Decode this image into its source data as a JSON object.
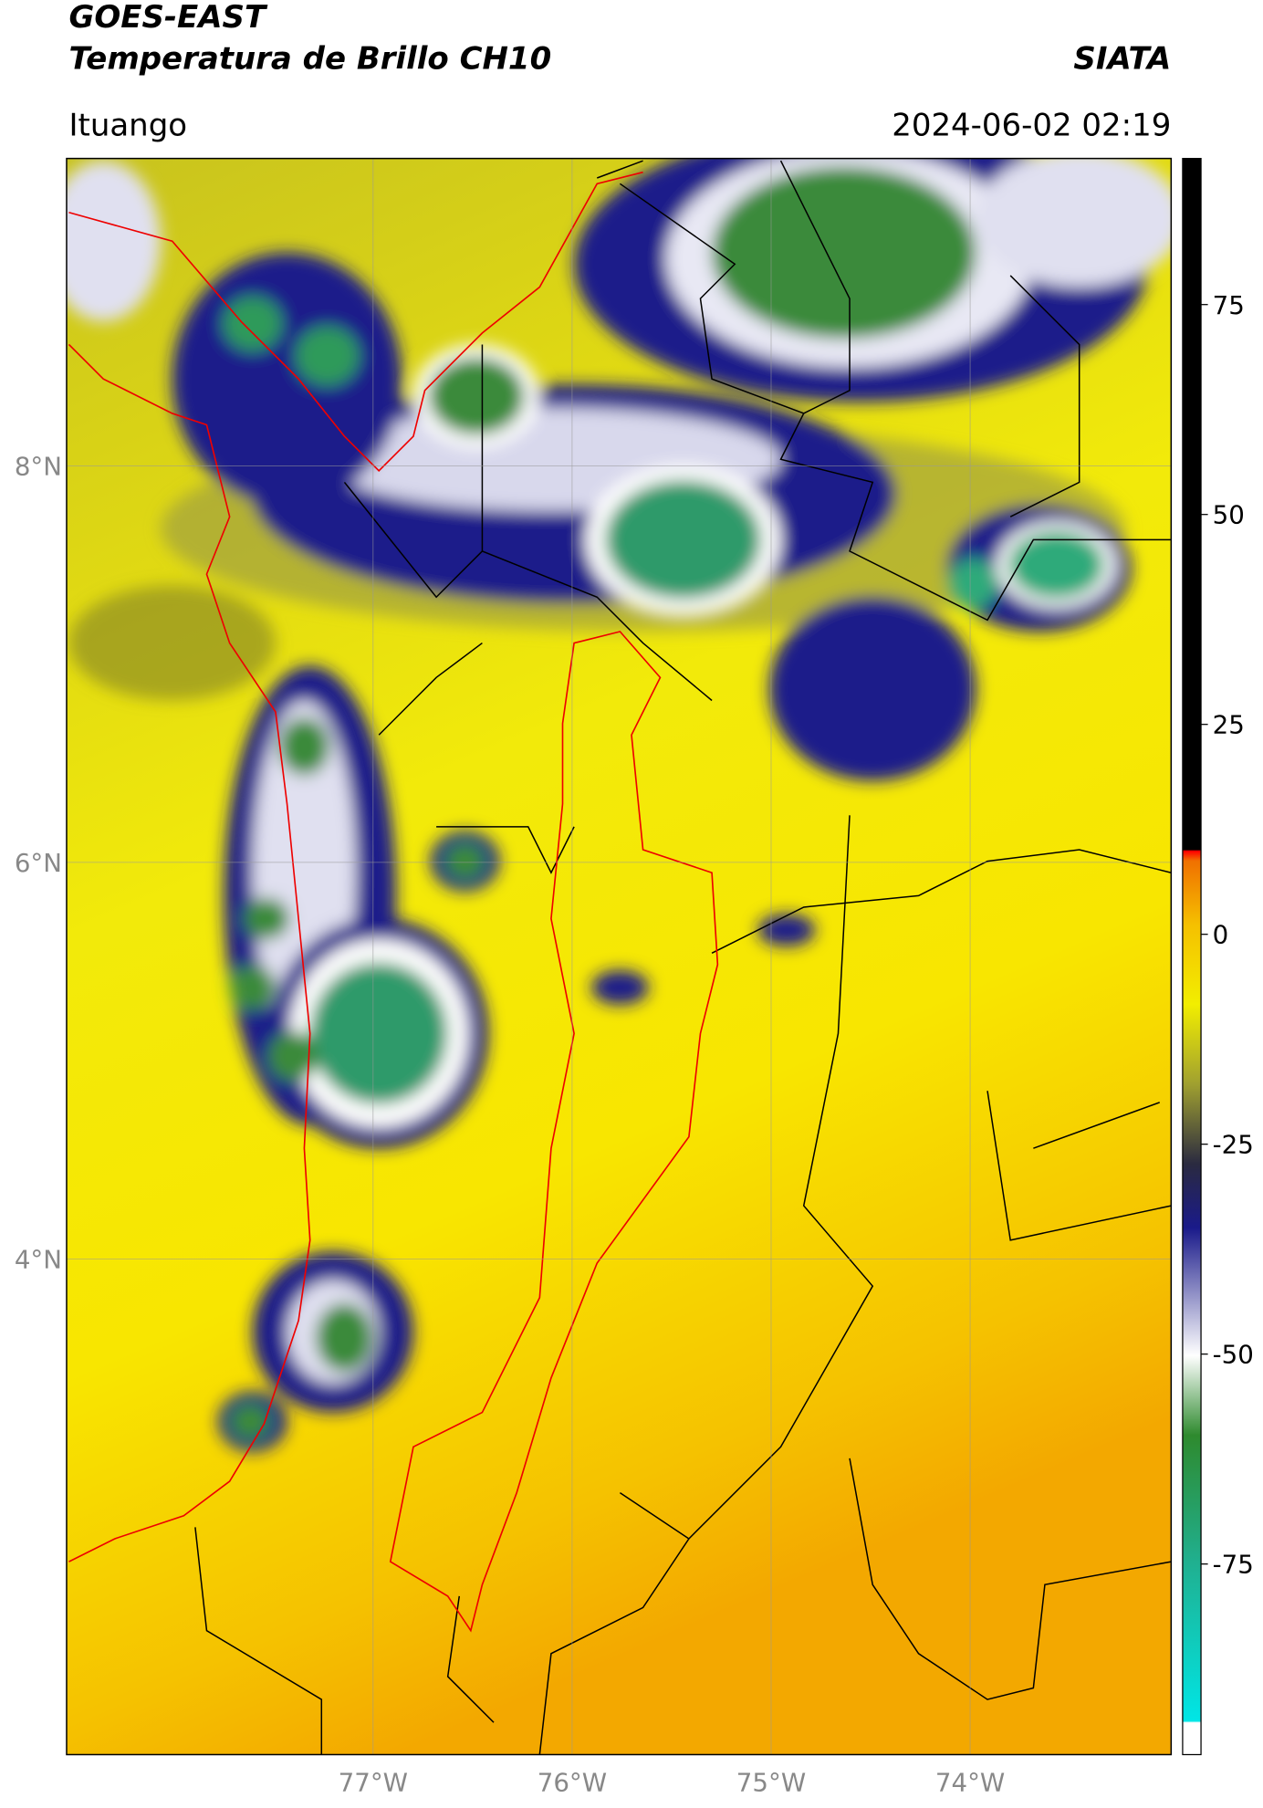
{
  "header": {
    "title": "GOES-EAST",
    "subtitle": "Temperatura de Brillo CH10",
    "source": "SIATA",
    "location": "Ituango",
    "datetime": "2024-06-02 02:19"
  },
  "map": {
    "xlim": [
      -78.54,
      -72.99
    ],
    "ylim": [
      1.5,
      9.55
    ],
    "xticks": [
      {
        "value": -77,
        "label": "77°W"
      },
      {
        "value": -76,
        "label": "76°W"
      },
      {
        "value": -75,
        "label": "75°W"
      },
      {
        "value": -74,
        "label": "74°W"
      }
    ],
    "yticks": [
      {
        "value": 8,
        "label": "8°N"
      },
      {
        "value": 6,
        "label": "6°N"
      },
      {
        "value": 4,
        "label": "4°N"
      }
    ]
  },
  "colorbar": {
    "clim": [
      -97.7,
      92.4
    ],
    "ticks": [
      75,
      50,
      25,
      0,
      -25,
      -50,
      -75
    ]
  }
}
